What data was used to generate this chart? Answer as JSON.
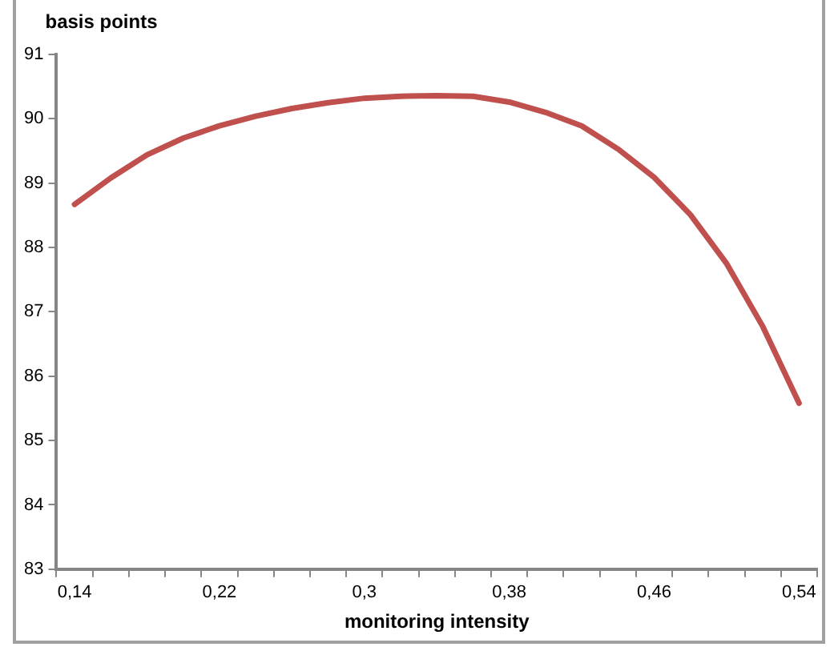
{
  "chart_data": {
    "type": "line",
    "xlabel": "monitoring intensity",
    "ylabel": "basis points",
    "categories": [
      "0,14",
      null,
      null,
      null,
      "0,22",
      null,
      null,
      null,
      "0,3",
      null,
      null,
      null,
      "0,38",
      null,
      null,
      null,
      "0,46",
      null,
      null,
      null,
      "0,54"
    ],
    "series": [
      {
        "color": "#c0504d",
        "values": [
          88.67,
          89.08,
          89.44,
          89.7,
          89.89,
          90.04,
          90.16,
          90.25,
          90.32,
          90.35,
          90.36,
          90.35,
          90.26,
          90.1,
          89.89,
          89.53,
          89.09,
          88.51,
          87.75,
          86.77,
          85.58
        ]
      }
    ],
    "ylim": [
      83,
      91
    ],
    "yticks": [
      83,
      84,
      85,
      86,
      87,
      88,
      89,
      90,
      91
    ],
    "grid": false,
    "legend": false,
    "marker": "none",
    "line_style": "solid"
  }
}
